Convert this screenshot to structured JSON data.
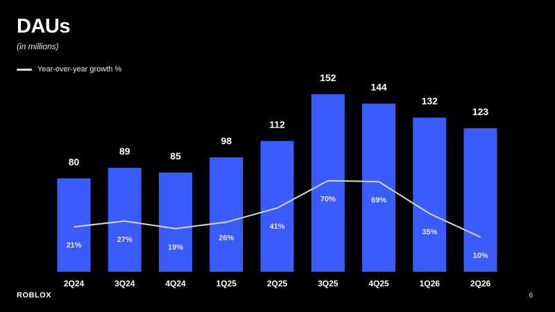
{
  "slide": {
    "title": "DAUs",
    "subtitle": "(in millions)",
    "legend_label": "Year-over-year growth %",
    "logo_text": "ROBLOX",
    "page_number": "6"
  },
  "chart_data": {
    "type": "bar",
    "title": "DAUs",
    "subtitle": "(in millions)",
    "categories": [
      "2Q24",
      "3Q24",
      "4Q24",
      "1Q25",
      "2Q25",
      "3Q25",
      "4Q25",
      "1Q26",
      "2Q26"
    ],
    "series": [
      {
        "values": [
          80,
          89,
          85,
          98,
          112,
          152,
          144,
          132,
          123
        ],
        "labels": [
          "80",
          "89",
          "85",
          "98",
          "112",
          "152",
          "144",
          "132",
          "123"
        ],
        "color": "#3a5cff"
      },
      {
        "name": "Year-over-year growth %",
        "type": "line",
        "values": [
          21,
          27,
          19,
          26,
          41,
          70,
          69,
          35,
          10
        ],
        "labels": [
          "21%",
          "27%",
          "19%",
          "26%",
          "41%",
          "70%",
          "69%",
          "35%",
          "10%"
        ],
        "color": "#d9d9d9"
      }
    ],
    "xlabel": "",
    "ylabel": "",
    "legend": "top-left",
    "grid": false
  }
}
